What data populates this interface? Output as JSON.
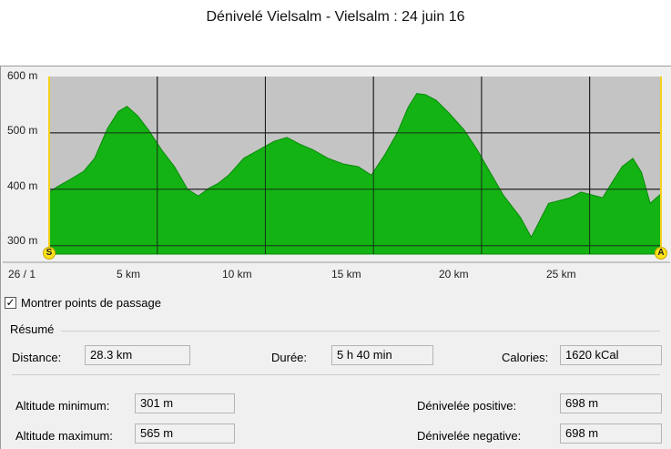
{
  "window": {
    "title": "Dénivelé Vielsalm - Vielsalm : 24 juin 16"
  },
  "chart_data": {
    "type": "area",
    "xlabel": "",
    "ylabel": "",
    "x_start_label": "26 / 1",
    "x_ticks": [
      "5 km",
      "10 km",
      "15 km",
      "20 km",
      "25 km"
    ],
    "y_ticks": [
      "300 m",
      "400 m",
      "500 m",
      "600 m"
    ],
    "xlim": [
      0,
      28.3
    ],
    "ylim": [
      285,
      600
    ],
    "grid": true,
    "fill_color": "#13b313",
    "line_color": "#0a8a0a",
    "background_color": "#c4c4c4",
    "start_marker": "S",
    "end_marker": "A",
    "x": [
      0,
      0.4,
      1,
      1.6,
      2.1,
      2.7,
      3.2,
      3.6,
      4.1,
      4.6,
      5.2,
      5.8,
      6.4,
      6.9,
      7.4,
      7.8,
      8.3,
      9.0,
      9.7,
      10.4,
      11.0,
      11.6,
      12.2,
      12.9,
      13.6,
      14.3,
      14.9,
      15.5,
      16.1,
      16.6,
      17.0,
      17.4,
      17.9,
      18.5,
      19.2,
      19.8,
      20.4,
      21.0,
      21.4,
      21.8,
      22.3,
      22.7,
      23.1,
      23.6,
      24.1,
      24.6,
      25.1,
      25.6,
      26.0,
      26.5,
      27.0,
      27.4,
      27.8,
      28.3
    ],
    "y": [
      395,
      405,
      418,
      432,
      455,
      508,
      538,
      547,
      530,
      505,
      470,
      440,
      400,
      388,
      402,
      410,
      425,
      455,
      470,
      485,
      492,
      480,
      470,
      455,
      445,
      440,
      425,
      460,
      500,
      545,
      570,
      568,
      558,
      535,
      505,
      470,
      430,
      390,
      370,
      350,
      315,
      345,
      375,
      380,
      385,
      395,
      390,
      385,
      410,
      440,
      455,
      430,
      375,
      392
    ]
  },
  "checkbox": {
    "checked_glyph": "✓",
    "label": "Montrer points de passage"
  },
  "summary": {
    "group_label": "Résumé",
    "distance_label": "Distance:",
    "distance_value": "28.3 km",
    "duration_label": "Durée:",
    "duration_value": "5 h 40 min",
    "calories_label": "Calories:",
    "calories_value": "1620 kCal",
    "alt_min_label": "Altitude minimum:",
    "alt_min_value": "301 m",
    "alt_max_label": "Altitude maximum:",
    "alt_max_value": "565 m",
    "elev_pos_label": "Dénivelée positive:",
    "elev_pos_value": "698 m",
    "elev_neg_label": "Dénivelée negative:",
    "elev_neg_value": "698 m"
  }
}
